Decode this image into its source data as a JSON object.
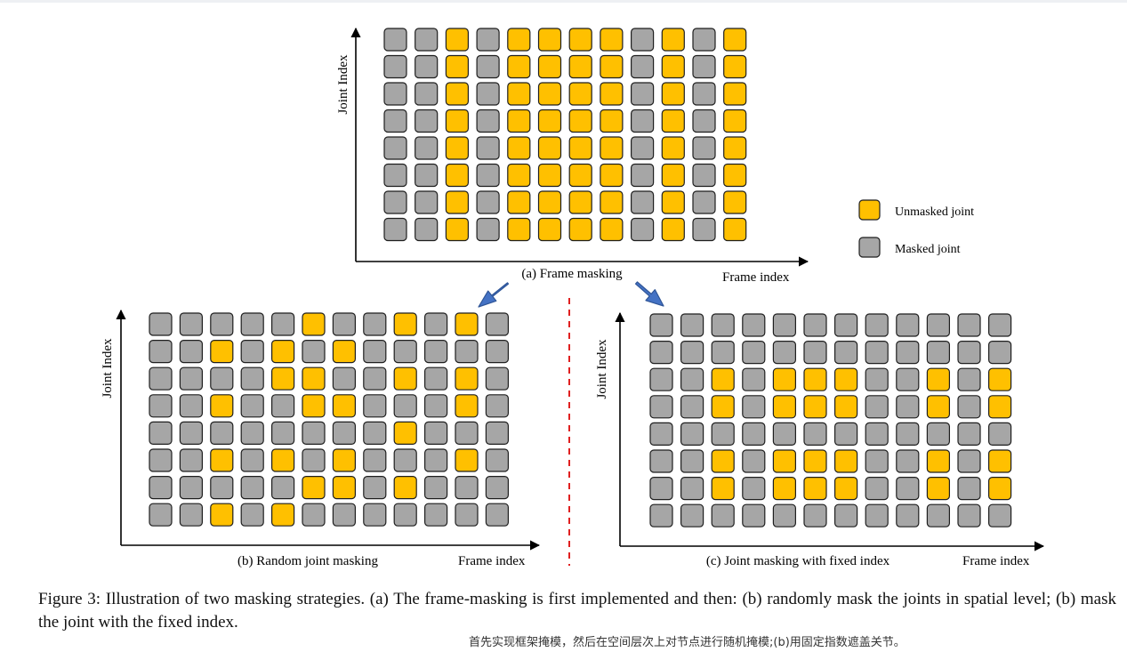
{
  "colors": {
    "unmasked": "#ffc000",
    "masked": "#a6a6a6",
    "tile_border": "#1f1f1f",
    "axis": "#000000",
    "arrow_fill": "#4472c4",
    "arrow_stroke": "#2f5597",
    "divider": "#e02020"
  },
  "legend": {
    "unmasked_label": "Unmasked joint",
    "masked_label": "Masked joint"
  },
  "panels": [
    {
      "id": "a",
      "subtitle": "(a) Frame masking",
      "y_axis_label": "Joint Index",
      "x_axis_label": "Frame index",
      "grid": [
        "001011110101",
        "001011110101",
        "001011110101",
        "001011110101",
        "001011110101",
        "001011110101",
        "001011110101",
        "001011110101"
      ]
    },
    {
      "id": "b",
      "subtitle": "(b) Random joint masking",
      "y_axis_label": "Joint Index",
      "x_axis_label": "Frame index",
      "grid": [
        "000001001010",
        "001010100000",
        "000011001010",
        "001001100010",
        "000000001000",
        "001010100010",
        "000001101000",
        "001010000000"
      ]
    },
    {
      "id": "c",
      "subtitle": "(c) Joint masking with fixed index",
      "y_axis_label": "Joint Index",
      "x_axis_label": "Frame index",
      "grid": [
        "000000000000",
        "000000000000",
        "001011100101",
        "001011100101",
        "000000000000",
        "001011100101",
        "001011100101",
        "000000000000"
      ]
    }
  ],
  "caption": "Figure 3: Illustration of two masking strategies. (a) The frame-masking is first implemented and then: (b) randomly mask the joints in spatial level; (b) mask the joint with the fixed index.",
  "note": "首先实现框架掩模，然后在空间层次上对节点进行随机掩模;(b)用固定指数遮盖关节。"
}
